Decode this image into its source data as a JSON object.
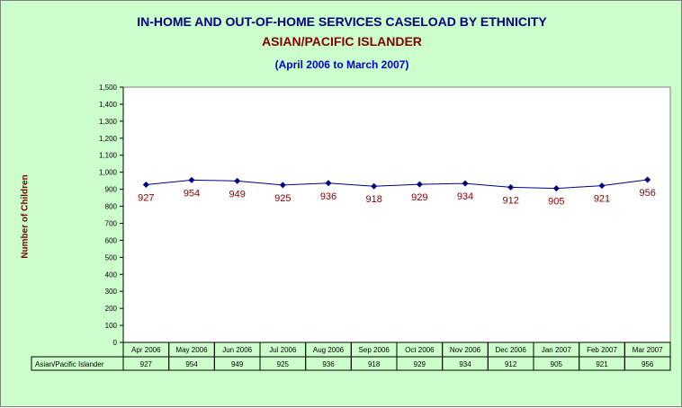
{
  "header": {
    "title": "IN-HOME AND OUT-OF-HOME SERVICES CASELOAD BY ETHNICITY",
    "subtitle": "ASIAN/PACIFIC ISLANDER",
    "period": "(April 2006 to March 2007)"
  },
  "colors": {
    "background": "#ccffcc",
    "plot_area": "#ffffff",
    "line": "#000080",
    "marker": "#000080",
    "data_label": "#800000",
    "title": "#000080",
    "subtitle": "#800000",
    "period": "#0000cc"
  },
  "chart_data": {
    "type": "line",
    "title": "IN-HOME AND OUT-OF-HOME SERVICES CASELOAD BY ETHNICITY",
    "subtitle": "ASIAN/PACIFIC ISLANDER",
    "ylabel": "Number of Children",
    "xlabel": "",
    "ylim": [
      0,
      1500
    ],
    "ytick_step": 100,
    "yticks": [
      "0",
      "100",
      "200",
      "300",
      "400",
      "500",
      "600",
      "700",
      "800",
      "900",
      "1,000",
      "1,100",
      "1,200",
      "1,300",
      "1,400",
      "1,500"
    ],
    "grid": false,
    "categories": [
      "Apr 2006",
      "May 2006",
      "Jun 2006",
      "Jul 2006",
      "Aug 2006",
      "Sep 2006",
      "Oct 2006",
      "Nov 2006",
      "Dec 2006",
      "Jan 2007",
      "Feb 2007",
      "Mar 2007"
    ],
    "series": [
      {
        "name": "Asian/Pacific Islander",
        "values": [
          927,
          954,
          949,
          925,
          936,
          918,
          929,
          934,
          912,
          905,
          921,
          956
        ],
        "labels": [
          "927",
          "954",
          "949",
          "925",
          "936",
          "918",
          "929",
          "934",
          "912",
          "905",
          "921",
          "956"
        ]
      }
    ],
    "data_table": true
  }
}
